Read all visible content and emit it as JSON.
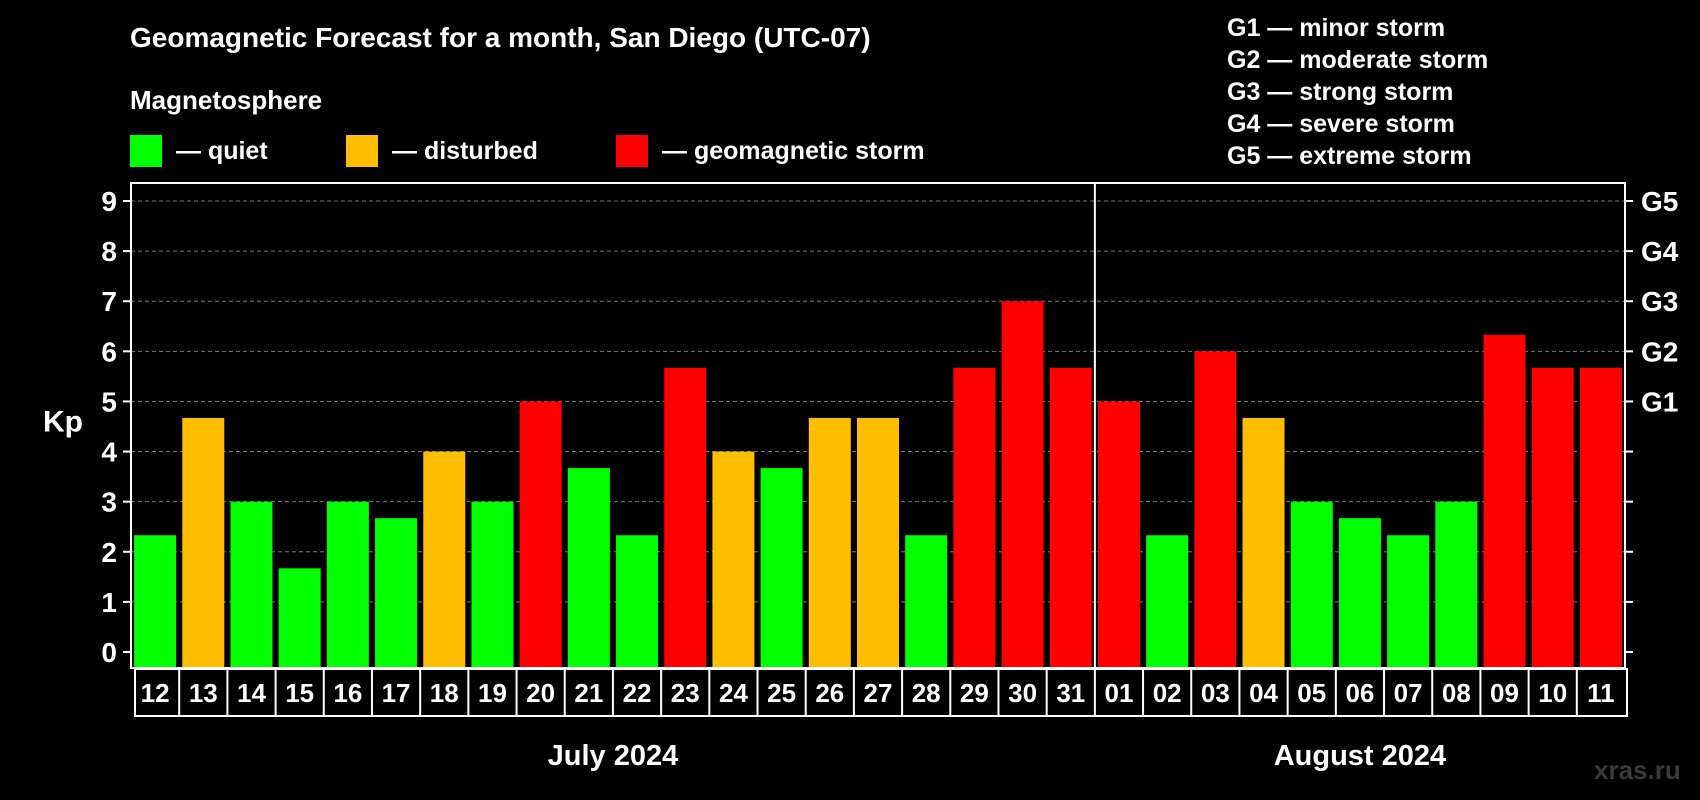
{
  "title": "Geomagnetic Forecast for a month, San Diego (UTC-07)",
  "legend": {
    "heading": "Magnetosphere",
    "items": [
      {
        "label": "— quiet",
        "color": "#00ff00"
      },
      {
        "label": "— disturbed",
        "color": "#ffbf00"
      },
      {
        "label": "— geomagnetic storm",
        "color": "#ff0000"
      }
    ]
  },
  "storm_scale": [
    "G1 — minor storm",
    "G2 — moderate storm",
    "G3 — strong storm",
    "G4 — severe storm",
    "G5 — extreme storm"
  ],
  "watermark": "xras.ru",
  "chart_data": {
    "type": "bar",
    "ylabel": "Kp",
    "xlabel": "",
    "ylim": [
      0,
      9
    ],
    "yticks": [
      0,
      1,
      2,
      3,
      4,
      5,
      6,
      7,
      8,
      9
    ],
    "grid": true,
    "right_axis_labels": [
      {
        "value": 5,
        "label": "G1"
      },
      {
        "value": 6,
        "label": "G2"
      },
      {
        "value": 7,
        "label": "G3"
      },
      {
        "value": 8,
        "label": "G4"
      },
      {
        "value": 9,
        "label": "G5"
      }
    ],
    "categories": [
      "12",
      "13",
      "14",
      "15",
      "16",
      "17",
      "18",
      "19",
      "20",
      "21",
      "22",
      "23",
      "24",
      "25",
      "26",
      "27",
      "28",
      "29",
      "30",
      "31",
      "01",
      "02",
      "03",
      "04",
      "05",
      "06",
      "07",
      "08",
      "09",
      "10",
      "11"
    ],
    "values": [
      2.33,
      4.67,
      3,
      1.67,
      3,
      2.67,
      4,
      3,
      5,
      3.67,
      2.33,
      5.67,
      4,
      3.67,
      4.67,
      4.67,
      2.33,
      5.67,
      7,
      5.67,
      5,
      2.33,
      6,
      4.67,
      3,
      2.67,
      2.33,
      3,
      6.33,
      5.67,
      5.67
    ],
    "levels": [
      "quiet",
      "disturbed",
      "quiet",
      "quiet",
      "quiet",
      "quiet",
      "disturbed",
      "quiet",
      "storm",
      "quiet",
      "quiet",
      "storm",
      "disturbed",
      "quiet",
      "disturbed",
      "disturbed",
      "quiet",
      "storm",
      "storm",
      "storm",
      "storm",
      "quiet",
      "storm",
      "disturbed",
      "quiet",
      "quiet",
      "quiet",
      "quiet",
      "storm",
      "storm",
      "storm"
    ],
    "level_colors": {
      "quiet": "#00ff00",
      "disturbed": "#ffbf00",
      "storm": "#ff0000"
    },
    "months": [
      {
        "label": "July 2024",
        "start": 0,
        "end": 19
      },
      {
        "label": "August 2024",
        "start": 20,
        "end": 30
      }
    ]
  }
}
